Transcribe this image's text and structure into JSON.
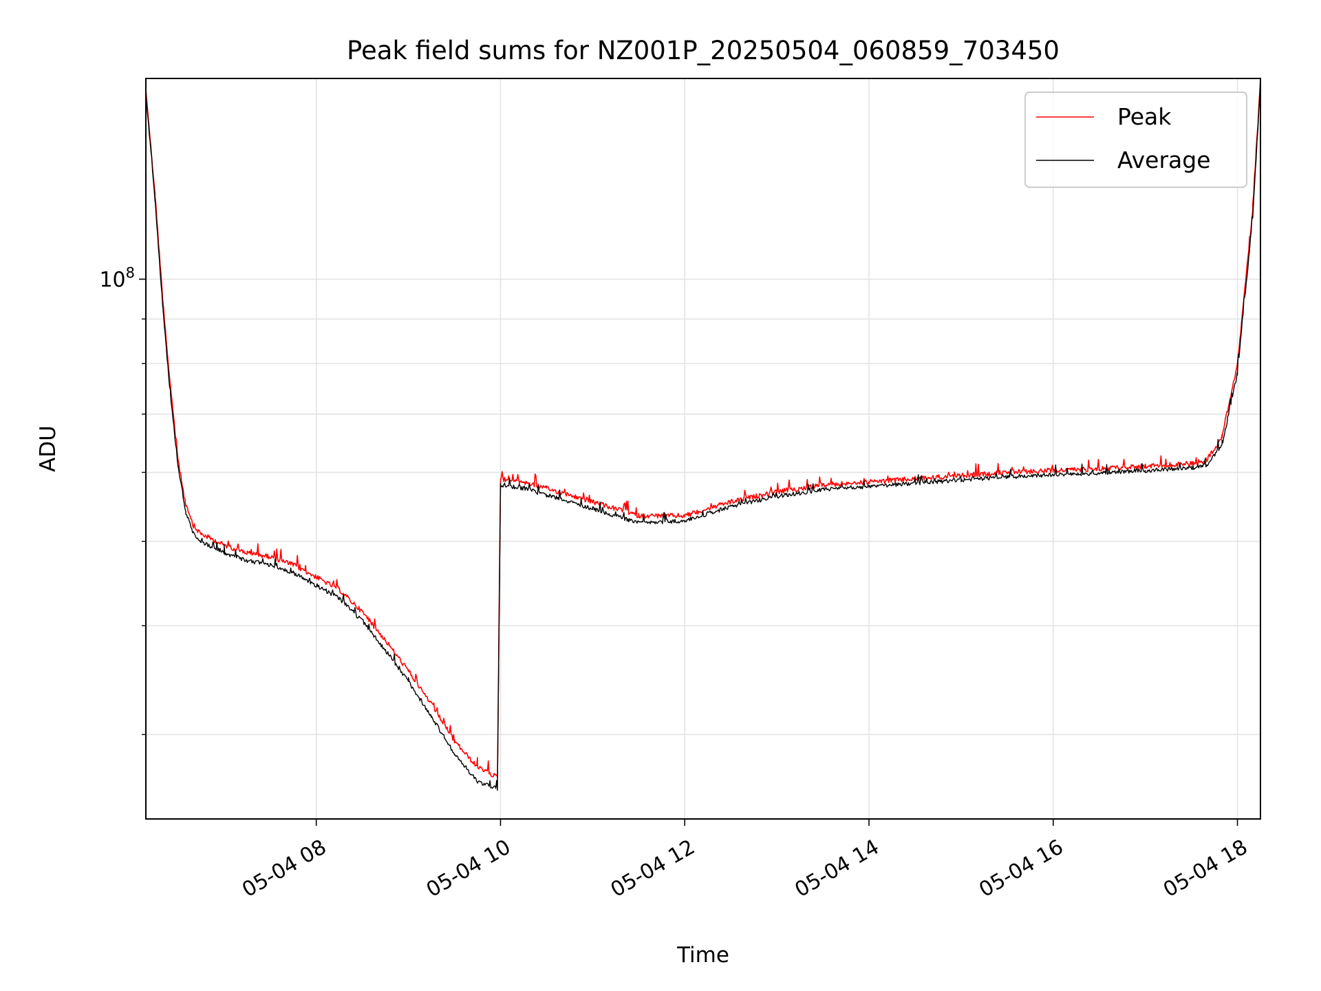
{
  "chart_data": {
    "type": "line",
    "title": "Peak field sums for NZ001P_20250504_060859_703450",
    "xlabel": "Time",
    "ylabel": "ADU",
    "yscale": "log",
    "ylim": [
      24000000,
      170000000
    ],
    "xlim": [
      "2025-05-04T06:09",
      "2025-05-04T18:15"
    ],
    "x_tick_labels": [
      "05-04 08",
      "05-04 10",
      "05-04 12",
      "05-04 14",
      "05-04 16",
      "05-04 18"
    ],
    "x_ticks": [
      "2025-05-04T08:00",
      "2025-05-04T10:00",
      "2025-05-04T12:00",
      "2025-05-04T14:00",
      "2025-05-04T16:00",
      "2025-05-04T18:00"
    ],
    "y_tick_labels": [
      {
        "base": "10",
        "exp": "8",
        "value": 100000000
      }
    ],
    "y_minor_ticks": [
      30000000,
      40000000,
      50000000,
      60000000,
      70000000,
      80000000,
      90000000
    ],
    "grid": true,
    "legend": {
      "position": "top-right"
    },
    "series": [
      {
        "name": "Peak",
        "color": "#ff0000",
        "x": [
          "2025-05-04T06:09",
          "2025-05-04T06:15",
          "2025-05-04T06:20",
          "2025-05-04T06:25",
          "2025-05-04T06:30",
          "2025-05-04T06:35",
          "2025-05-04T06:40",
          "2025-05-04T06:45",
          "2025-05-04T06:50",
          "2025-05-04T07:00",
          "2025-05-04T07:15",
          "2025-05-04T07:30",
          "2025-05-04T07:45",
          "2025-05-04T08:00",
          "2025-05-04T08:15",
          "2025-05-04T08:30",
          "2025-05-04T08:45",
          "2025-05-04T09:00",
          "2025-05-04T09:15",
          "2025-05-04T09:30",
          "2025-05-04T09:45",
          "2025-05-04T09:58",
          "2025-05-04T10:00",
          "2025-05-04T10:15",
          "2025-05-04T10:30",
          "2025-05-04T11:00",
          "2025-05-04T11:30",
          "2025-05-04T12:00",
          "2025-05-04T12:30",
          "2025-05-04T13:00",
          "2025-05-04T13:30",
          "2025-05-04T14:00",
          "2025-05-04T14:30",
          "2025-05-04T15:00",
          "2025-05-04T15:30",
          "2025-05-04T16:00",
          "2025-05-04T16:30",
          "2025-05-04T17:00",
          "2025-05-04T17:30",
          "2025-05-04T17:40",
          "2025-05-04T17:50",
          "2025-05-04T18:00",
          "2025-05-04T18:10",
          "2025-05-04T18:15"
        ],
        "y": [
          165000000,
          125000000,
          95000000,
          75000000,
          62000000,
          55000000,
          52000000,
          51000000,
          50500000,
          49500000,
          48500000,
          48000000,
          47000000,
          45500000,
          44000000,
          41500000,
          38500000,
          35500000,
          32500000,
          29500000,
          27500000,
          26800000,
          59000000,
          58500000,
          57500000,
          55500000,
          53500000,
          53500000,
          55500000,
          57000000,
          58000000,
          58500000,
          59000000,
          59500000,
          60000000,
          60300000,
          60600000,
          61000000,
          61400000,
          62000000,
          66000000,
          80000000,
          120000000,
          170000000
        ]
      },
      {
        "name": "Average",
        "color": "#000000",
        "x": [
          "2025-05-04T06:09",
          "2025-05-04T06:15",
          "2025-05-04T06:20",
          "2025-05-04T06:25",
          "2025-05-04T06:30",
          "2025-05-04T06:35",
          "2025-05-04T06:40",
          "2025-05-04T06:45",
          "2025-05-04T06:50",
          "2025-05-04T07:00",
          "2025-05-04T07:15",
          "2025-05-04T07:30",
          "2025-05-04T07:45",
          "2025-05-04T08:00",
          "2025-05-04T08:15",
          "2025-05-04T08:30",
          "2025-05-04T08:45",
          "2025-05-04T09:00",
          "2025-05-04T09:15",
          "2025-05-04T09:30",
          "2025-05-04T09:45",
          "2025-05-04T09:58",
          "2025-05-04T10:00",
          "2025-05-04T10:15",
          "2025-05-04T10:30",
          "2025-05-04T11:00",
          "2025-05-04T11:30",
          "2025-05-04T12:00",
          "2025-05-04T12:30",
          "2025-05-04T13:00",
          "2025-05-04T13:30",
          "2025-05-04T14:00",
          "2025-05-04T14:30",
          "2025-05-04T15:00",
          "2025-05-04T15:30",
          "2025-05-04T16:00",
          "2025-05-04T16:30",
          "2025-05-04T17:00",
          "2025-05-04T17:30",
          "2025-05-04T17:40",
          "2025-05-04T17:50",
          "2025-05-04T18:00",
          "2025-05-04T18:10",
          "2025-05-04T18:15"
        ],
        "y": [
          163000000,
          123000000,
          93000000,
          73500000,
          61000000,
          54000000,
          51000000,
          50000000,
          49500000,
          48500000,
          47500000,
          47000000,
          46000000,
          44500000,
          43000000,
          40500000,
          37500000,
          34500000,
          31500000,
          28500000,
          26500000,
          26000000,
          58000000,
          57500000,
          56500000,
          54500000,
          52500000,
          52800000,
          54800000,
          56300000,
          57300000,
          57800000,
          58300000,
          58800000,
          59300000,
          59600000,
          59900000,
          60300000,
          60700000,
          61200000,
          64500000,
          78000000,
          118000000,
          168000000
        ]
      }
    ]
  }
}
